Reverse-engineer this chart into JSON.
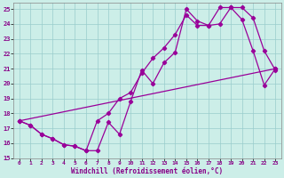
{
  "xlabel": "Windchill (Refroidissement éolien,°C)",
  "bg_color": "#cceee8",
  "grid_color": "#aaddcc",
  "line_color": "#990099",
  "xlim": [
    -0.5,
    23.5
  ],
  "ylim": [
    15,
    25.4
  ],
  "xticks": [
    0,
    1,
    2,
    3,
    4,
    5,
    6,
    7,
    8,
    9,
    10,
    11,
    12,
    13,
    14,
    15,
    16,
    17,
    18,
    19,
    20,
    21,
    22,
    23
  ],
  "yticks": [
    15,
    16,
    17,
    18,
    19,
    20,
    21,
    22,
    23,
    24,
    25
  ],
  "series1_x": [
    0,
    1,
    2,
    3,
    4,
    5,
    6,
    7,
    8,
    9,
    10,
    11,
    12,
    13,
    14,
    15,
    16,
    17,
    18,
    19,
    20,
    21,
    22,
    23
  ],
  "series1_y": [
    17.5,
    17.2,
    16.6,
    16.3,
    15.9,
    15.8,
    15.5,
    15.5,
    17.4,
    16.6,
    18.8,
    20.9,
    20.0,
    21.4,
    22.1,
    25.0,
    24.2,
    23.9,
    24.0,
    25.1,
    25.1,
    24.4,
    22.2,
    20.9
  ],
  "series2_x": [
    0,
    1,
    2,
    3,
    4,
    5,
    6,
    7,
    8,
    9,
    10,
    11,
    12,
    13,
    14,
    15,
    16,
    17,
    18,
    19,
    20,
    21,
    22,
    23
  ],
  "series2_y": [
    17.5,
    17.2,
    16.6,
    16.3,
    15.9,
    15.8,
    15.5,
    17.5,
    18.0,
    19.0,
    19.4,
    20.7,
    21.7,
    22.4,
    23.3,
    24.6,
    23.9,
    23.9,
    25.1,
    25.1,
    24.3,
    22.2,
    19.9,
    21.0
  ],
  "series3_x": [
    0,
    23
  ],
  "series3_y": [
    17.5,
    21.0
  ]
}
